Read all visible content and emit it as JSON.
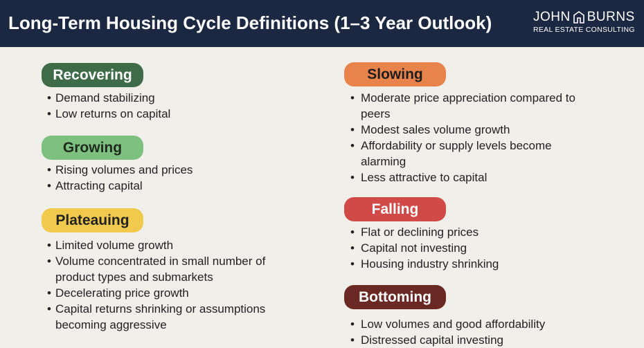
{
  "header": {
    "title": "Long-Term Housing Cycle Definitions (1–3 Year Outlook)",
    "logo": {
      "left": "JOHN",
      "right": "BURNS",
      "sub": "REAL ESTATE CONSULTING"
    }
  },
  "sections": [
    {
      "label": "Recovering",
      "bullets": [
        "Demand stabilizing",
        "Low returns on capital"
      ]
    },
    {
      "label": "Growing",
      "bullets": [
        "Rising volumes and prices",
        "Attracting capital"
      ]
    },
    {
      "label": "Plateauing",
      "bullets": [
        "Limited volume growth",
        "Volume concentrated in small number of product types and submarkets",
        "Decelerating price growth",
        "Capital returns shrinking or assumptions becoming aggressive"
      ]
    },
    {
      "label": "Slowing",
      "bullets": [
        "Moderate price appreciation compared to peers",
        "Modest sales volume growth",
        "Affordability or supply levels become alarming",
        "Less attractive to capital"
      ]
    },
    {
      "label": "Falling",
      "bullets": [
        "Flat or declining prices",
        "Capital not investing",
        "Housing industry shrinking"
      ]
    },
    {
      "label": "Bottoming",
      "bullets": [
        "Low volumes and good affordability",
        "Distressed capital investing"
      ]
    }
  ]
}
